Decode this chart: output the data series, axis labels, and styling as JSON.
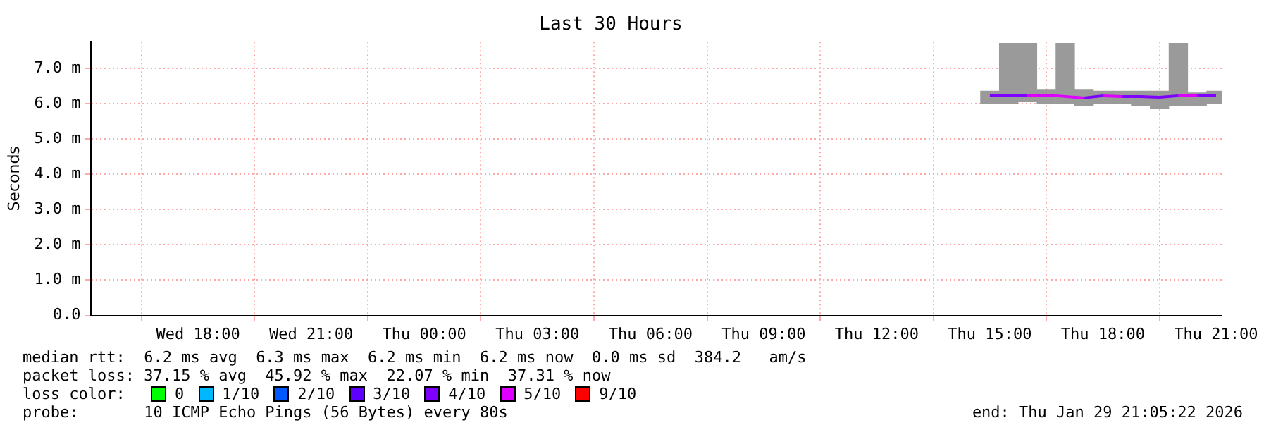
{
  "chart_data": {
    "type": "bar",
    "title": "Last 30 Hours",
    "ylabel": "Seconds",
    "x": [
      "2026-01-29T15:00",
      "2026-01-29T15:30",
      "2026-01-29T16:00",
      "2026-01-29T16:30",
      "2026-01-29T17:00",
      "2026-01-29T17:30",
      "2026-01-29T18:00",
      "2026-01-29T18:30",
      "2026-01-29T19:00",
      "2026-01-29T19:30",
      "2026-01-29T20:00",
      "2026-01-29T20:30",
      "2026-01-29T21:00"
    ],
    "series": [
      {
        "color": "#9a9a9a",
        "base": [
          6.0,
          6.0,
          6.05,
          6.0,
          6.0,
          5.95,
          6.0,
          6.0,
          5.95,
          5.85,
          5.95,
          5.95,
          6.0
        ],
        "values": [
          0.35,
          1.7,
          1.65,
          0.4,
          1.7,
          0.45,
          0.35,
          0.35,
          0.4,
          0.5,
          1.75,
          0.35,
          0.35
        ]
      },
      {
        "type": "line",
        "name": "0",
        "color": "#00ff00",
        "values": [
          null,
          null,
          null,
          null,
          null,
          null,
          null,
          null,
          null,
          null,
          null,
          null,
          null
        ]
      },
      {
        "type": "line",
        "name": "1/10",
        "color": "#00b8ff",
        "values": [
          null,
          null,
          null,
          null,
          null,
          null,
          null,
          null,
          null,
          null,
          null,
          null,
          null
        ]
      },
      {
        "type": "line",
        "name": "2/10",
        "color": "#0059ff",
        "values": [
          null,
          null,
          null,
          null,
          null,
          null,
          null,
          null,
          null,
          null,
          null,
          null,
          null
        ]
      },
      {
        "type": "line",
        "name": "3/10",
        "color": "#5e00ff",
        "values": [
          null,
          null,
          null,
          null,
          null,
          null,
          null,
          null,
          null,
          null,
          null,
          null,
          null
        ]
      },
      {
        "type": "line",
        "name": "4/10",
        "color": "#7e00ff",
        "x": [
          "2026-01-29T15:00",
          "2026-01-29T15:30",
          "2026-01-29T16:00",
          "2026-01-29T16:15",
          "2026-01-29T17:30",
          "2026-01-29T18:00",
          "2026-01-29T18:15",
          "2026-01-29T18:30",
          "2026-01-29T19:00",
          "2026-01-29T19:30",
          "2026-01-29T20:00",
          "2026-01-29T20:15",
          "2026-01-29T20:30",
          "2026-01-29T21:00"
        ],
        "values": [
          6.22,
          6.22,
          6.23,
          null,
          6.16,
          6.22,
          null,
          6.2,
          6.2,
          6.18,
          6.22,
          null,
          6.22,
          6.22
        ]
      },
      {
        "type": "line",
        "name": "5/10",
        "color": "#dd00ff",
        "x": [
          "2026-01-29T16:00",
          "2026-01-29T16:30",
          "2026-01-29T17:00",
          "2026-01-29T17:30",
          "2026-01-29T17:45",
          "2026-01-29T18:00",
          "2026-01-29T18:30",
          "2026-01-29T18:45",
          "2026-01-29T20:00",
          "2026-01-29T20:30"
        ],
        "values": [
          6.23,
          6.24,
          6.2,
          6.16,
          null,
          6.22,
          6.2,
          null,
          6.22,
          6.22
        ]
      },
      {
        "type": "line",
        "name": "9/10",
        "color": "#ff0000",
        "values": [
          null,
          null,
          null,
          null,
          null,
          null,
          null,
          null,
          null,
          null,
          null,
          null,
          null
        ]
      }
    ],
    "xlim": [
      "2026-01-28T15:09",
      "2026-01-29T21:09"
    ],
    "xticks": [
      {
        "value": "2026-01-28T18:00",
        "label": "Wed 18:00"
      },
      {
        "value": "2026-01-28T21:00",
        "label": "Wed 21:00"
      },
      {
        "value": "2026-01-29T00:00",
        "label": "Thu 00:00"
      },
      {
        "value": "2026-01-29T03:00",
        "label": "Thu 03:00"
      },
      {
        "value": "2026-01-29T06:00",
        "label": "Thu 06:00"
      },
      {
        "value": "2026-01-29T09:00",
        "label": "Thu 09:00"
      },
      {
        "value": "2026-01-29T12:00",
        "label": "Thu 12:00"
      },
      {
        "value": "2026-01-29T15:00",
        "label": "Thu 15:00"
      },
      {
        "value": "2026-01-29T18:00",
        "label": "Thu 18:00"
      },
      {
        "value": "2026-01-29T21:00",
        "label": "Thu 21:00"
      }
    ],
    "ylim": [
      0,
      7.75
    ],
    "yticks": [
      {
        "value": 0,
        "label": "0.0"
      },
      {
        "value": 1,
        "label": "1.0 m"
      },
      {
        "value": 2,
        "label": "2.0 m"
      },
      {
        "value": 3,
        "label": "3.0 m"
      },
      {
        "value": 4,
        "label": "4.0 m"
      },
      {
        "value": 5,
        "label": "5.0 m"
      },
      {
        "value": 6,
        "label": "6.0 m"
      },
      {
        "value": 7,
        "label": "7.0 m"
      }
    ],
    "grid": true,
    "legend": "bottom",
    "legend_title": "loss color:",
    "annotations": [
      "median rtt:  6.2 ms avg  6.3 ms max  6.2 ms min  6.2 ms now  0.0 ms sd  384.2   am/s",
      "packet loss: 37.15 % avg  45.92 % max  22.07 % min  37.31 % now",
      "probe:       10 ICMP Echo Pings (56 Bytes) every 80s",
      "end: Thu Jan 29 21:05:22 2026"
    ]
  }
}
